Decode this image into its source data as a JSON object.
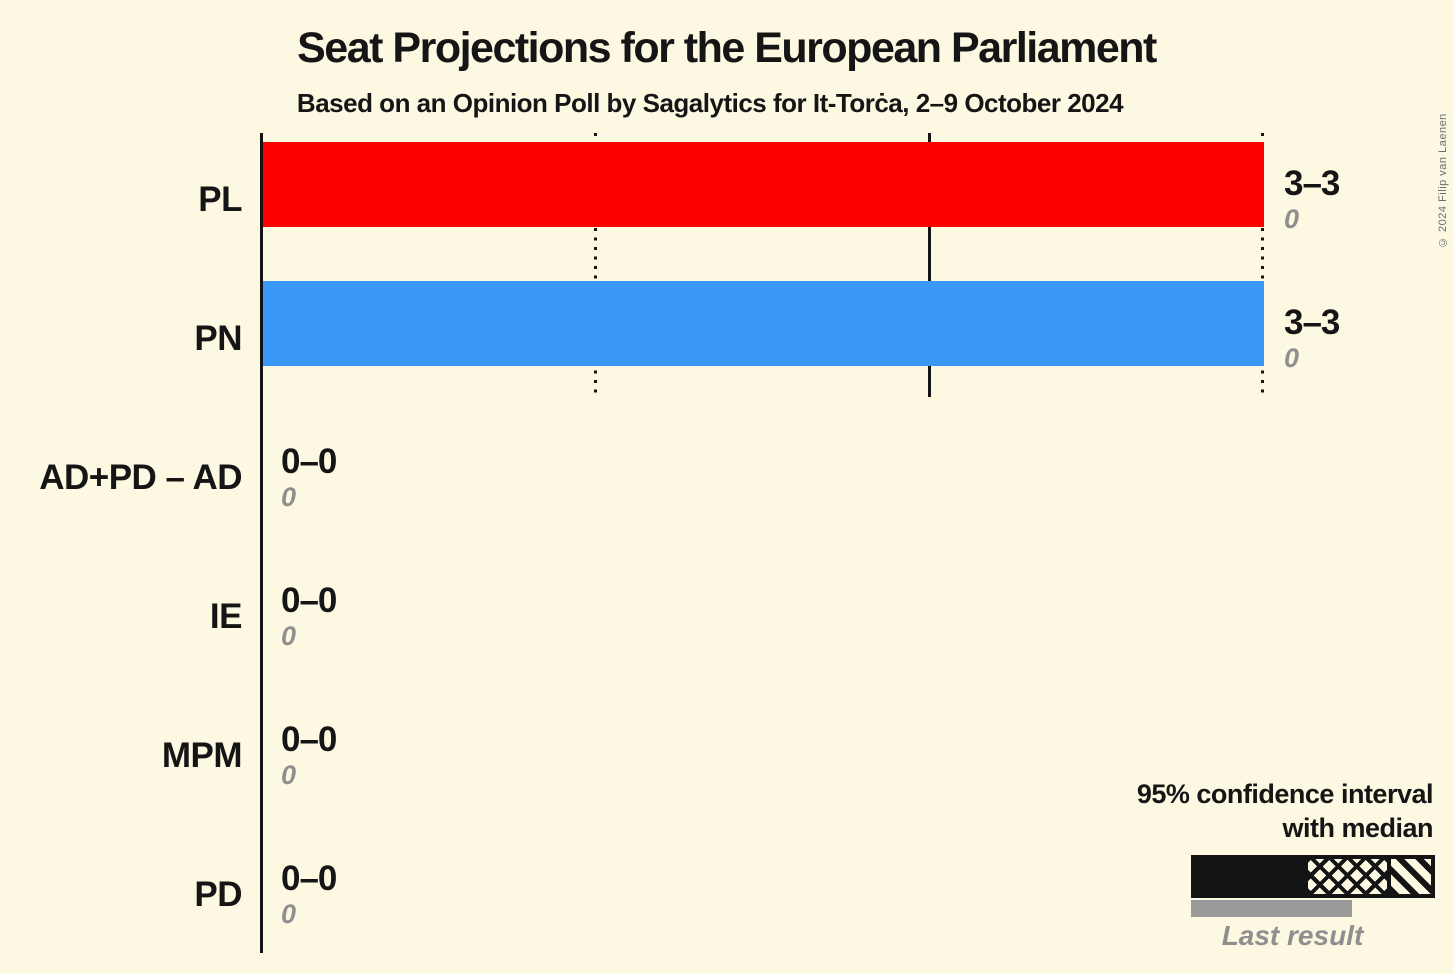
{
  "title": "Seat Projections for the European Parliament",
  "subtitle": "Based on an Opinion Poll by Sagalytics for It-Torċa, 2–9 October 2024",
  "copyright": "© 2024 Filip van Laenen",
  "colors": {
    "background": "#FDF8E2",
    "ink": "#141414",
    "gray": "#8F8F8F",
    "pl_red": "#FC0000",
    "pn_blue": "#3A99F7"
  },
  "legend": {
    "ci_line1": "95% confidence interval",
    "ci_line2": "with median",
    "last_result_label": "Last result"
  },
  "chart_data": {
    "type": "bar",
    "orientation": "horizontal",
    "title": "Seat Projections for the European Parliament",
    "subtitle": "Based on an Opinion Poll by Sagalytics for It-Torċa, 2–9 October 2024",
    "unit": "seats",
    "xlim": [
      0,
      3.55
    ],
    "grid": "vertical seat lines",
    "gridlines": [
      {
        "seats": 1,
        "style": "dotted"
      },
      {
        "seats": 2,
        "style": "solid"
      },
      {
        "seats": 3,
        "style": "dotted"
      }
    ],
    "categories": [
      "PL",
      "PN",
      "AD+PD – AD",
      "IE",
      "MPM",
      "PD"
    ],
    "rows": [
      {
        "party": "PL",
        "ci_low": 3,
        "ci_high": 3,
        "median": 3,
        "ci_label": "3–3",
        "last_result": 0,
        "last_label": "0",
        "color": "#FC0000"
      },
      {
        "party": "PN",
        "ci_low": 3,
        "ci_high": 3,
        "median": 3,
        "ci_label": "3–3",
        "last_result": 0,
        "last_label": "0",
        "color": "#3A99F7"
      },
      {
        "party": "AD+PD – AD",
        "ci_low": 0,
        "ci_high": 0,
        "median": 0,
        "ci_label": "0–0",
        "last_result": 0,
        "last_label": "0",
        "color": null
      },
      {
        "party": "IE",
        "ci_low": 0,
        "ci_high": 0,
        "median": 0,
        "ci_label": "0–0",
        "last_result": 0,
        "last_label": "0",
        "color": null
      },
      {
        "party": "MPM",
        "ci_low": 0,
        "ci_high": 0,
        "median": 0,
        "ci_label": "0–0",
        "last_result": 0,
        "last_label": "0",
        "color": null
      },
      {
        "party": "PD",
        "ci_low": 0,
        "ci_high": 0,
        "median": 0,
        "ci_label": "0–0",
        "last_result": 0,
        "last_label": "0",
        "color": null
      }
    ]
  }
}
